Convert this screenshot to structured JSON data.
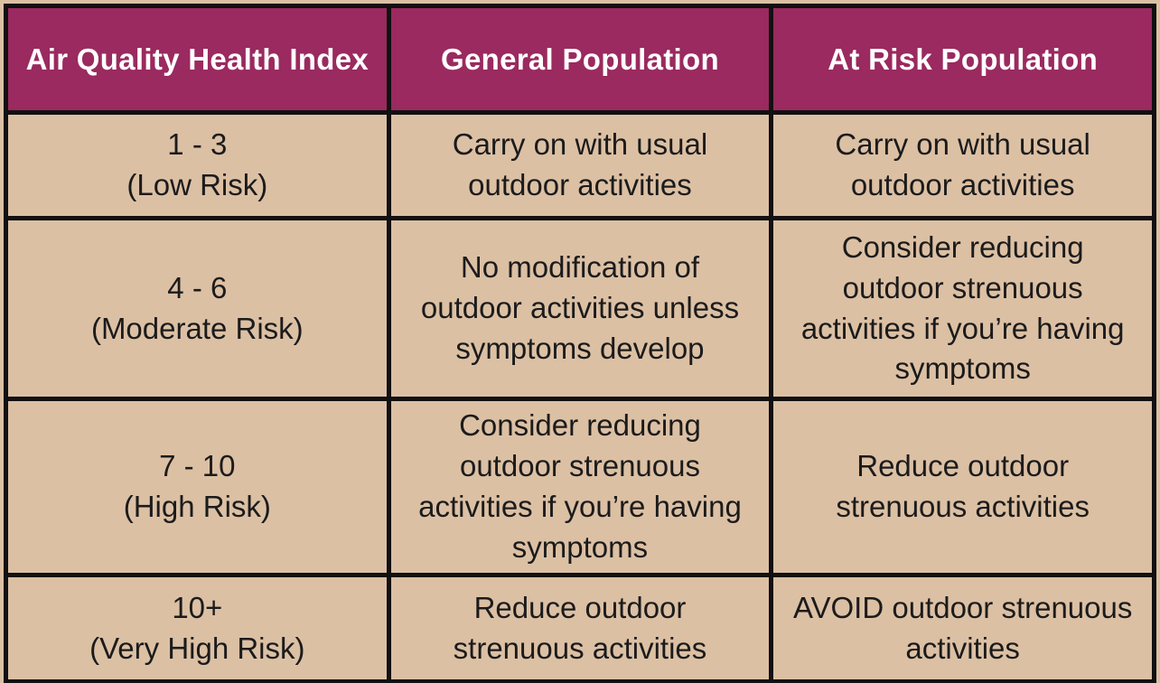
{
  "colors": {
    "header_bg": "#9a2a5f",
    "header_text": "#ffffff",
    "cell_bg": "#dcc0a4",
    "body_text": "#1b1b1b",
    "border": "#121011"
  },
  "table": {
    "headers": {
      "aqhi": "Air Quality Health Index",
      "general": "General Population",
      "at_risk": "At Risk Population"
    },
    "rows": [
      {
        "aqhi": "1 - 3\n(Low Risk)",
        "general": "Carry on with usual\noutdoor activities",
        "at_risk": "Carry on with usual\noutdoor activities"
      },
      {
        "aqhi": "4 - 6\n(Moderate Risk)",
        "general": "No modification of\noutdoor activities unless\nsymptoms develop",
        "at_risk": "Consider reducing\noutdoor strenuous\nactivities if you’re having\nsymptoms"
      },
      {
        "aqhi": "7 - 10\n(High Risk)",
        "general": "Consider reducing\noutdoor strenuous\nactivities if you’re having\nsymptoms",
        "at_risk": "Reduce outdoor\nstrenuous activities"
      },
      {
        "aqhi": "10+\n(Very High Risk)",
        "general": "Reduce outdoor\nstrenuous activities",
        "at_risk": "AVOID outdoor strenuous\nactivities"
      }
    ]
  },
  "chart_data": {
    "type": "table",
    "title": "Air Quality Health Index",
    "columns": [
      "Air Quality Health Index",
      "General Population",
      "At Risk Population"
    ],
    "rows": [
      [
        "1 - 3 (Low Risk)",
        "Carry on with usual outdoor activities",
        "Carry on with usual outdoor activities"
      ],
      [
        "4 - 6 (Moderate Risk)",
        "No modification of outdoor activities unless symptoms develop",
        "Consider reducing outdoor strenuous activities if you’re having symptoms"
      ],
      [
        "7 - 10 (High Risk)",
        "Consider reducing outdoor strenuous activities if you’re having symptoms",
        "Reduce outdoor strenuous activities"
      ],
      [
        "10+ (Very High Risk)",
        "Reduce outdoor strenuous activities",
        "AVOID outdoor strenuous activities"
      ]
    ]
  }
}
